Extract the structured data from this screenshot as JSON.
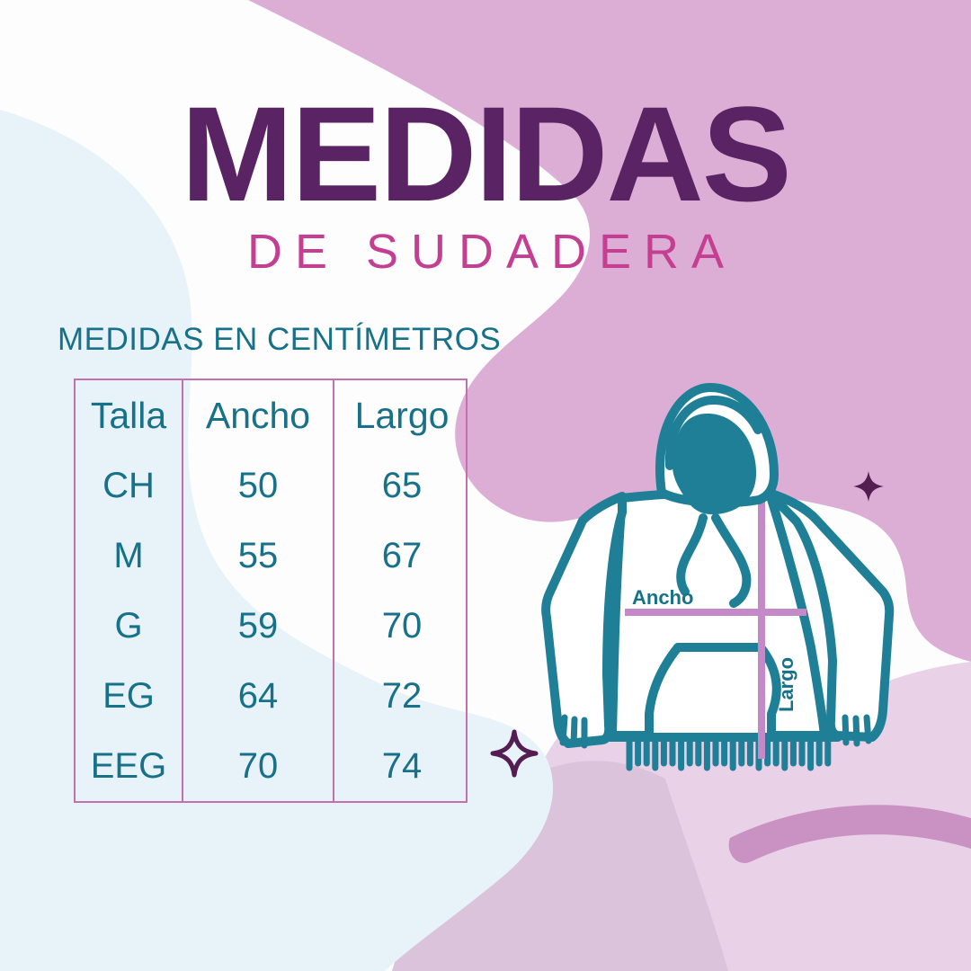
{
  "title": "MEDIDAS",
  "subtitle": "DE SUDADERA",
  "section_label": "MEDIDAS EN CENTÍMETROS",
  "size_table": {
    "columns": [
      "Talla",
      "Ancho",
      "Largo"
    ],
    "rows": [
      [
        "CH",
        "50",
        "65"
      ],
      [
        "M",
        "55",
        "67"
      ],
      [
        "G",
        "59",
        "70"
      ],
      [
        "EG",
        "64",
        "72"
      ],
      [
        "EEG",
        "70",
        "74"
      ]
    ]
  },
  "diagram": {
    "width_label": "Ancho",
    "length_label": "Largo"
  },
  "colors": {
    "title": "#5a2363",
    "subtitle": "#c43f92",
    "teal_text": "#177189",
    "hoodie_outline": "#1e7f96",
    "table_border": "#c46fae",
    "measure_line": "#c489c9",
    "sparkle": "#531d51",
    "bg_white": "#fdfdfd",
    "bg_blue": "#e8f2f9",
    "bg_pink": "#dcaed5",
    "bg_pink_light": "#e9d2e8",
    "bg_mauve": "#dcc3dc",
    "bg_mauve_dark": "#ca92c3"
  }
}
